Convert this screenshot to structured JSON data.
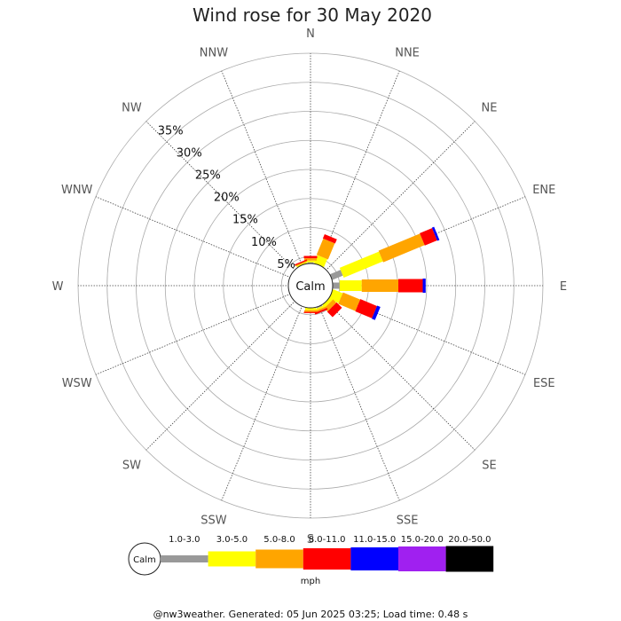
{
  "chart_data": {
    "type": "wind-rose",
    "title": "Wind rose for 30 May 2020",
    "directions": [
      "N",
      "NNE",
      "NE",
      "ENE",
      "E",
      "ESE",
      "SE",
      "SSE",
      "S",
      "SSW",
      "SW",
      "WSW",
      "W",
      "WNW",
      "NW",
      "NNW"
    ],
    "radial_ticks": [
      "5%",
      "10%",
      "15%",
      "20%",
      "25%",
      "30%",
      "35%"
    ],
    "radial_values": [
      5,
      10,
      15,
      20,
      25,
      30,
      35
    ],
    "radial_max": 40,
    "calm_label": "Calm",
    "speed_bins": [
      "1.0-3.0",
      "3.0-5.0",
      "5.0-8.0",
      "8.0-11.0",
      "11.0-15.0",
      "15.0-20.0",
      "20.0-50.0"
    ],
    "bin_colors": [
      "#999999",
      "#ffff00",
      "#ffa500",
      "#ff0000",
      "#0000ff",
      "#a020f0",
      "#000000"
    ],
    "unit": "mph",
    "series": [
      {
        "direction": "NNE",
        "values": [
          0,
          1.5,
          3,
          0.8,
          0,
          0,
          0
        ]
      },
      {
        "direction": "ENE",
        "values": [
          2,
          7.3,
          7.7,
          2.3,
          0.4,
          0,
          0
        ]
      },
      {
        "direction": "E",
        "values": [
          1.2,
          3.8,
          6.3,
          4.2,
          0.5,
          0,
          0
        ]
      },
      {
        "direction": "ESE",
        "values": [
          0,
          1.8,
          3.2,
          3.1,
          0.6,
          0,
          0
        ]
      },
      {
        "direction": "SE",
        "values": [
          0,
          0.6,
          0.8,
          1.3,
          0,
          0,
          0
        ]
      },
      {
        "direction": "SSE",
        "values": [
          0.2,
          0.3,
          0.3,
          0.3,
          0,
          0,
          0
        ]
      },
      {
        "direction": "S",
        "values": [
          0,
          0.4,
          0.3,
          0.2,
          0,
          0,
          0
        ]
      },
      {
        "direction": "N",
        "values": [
          0.2,
          0.3,
          0.4,
          0.4,
          0,
          0,
          0
        ]
      },
      {
        "direction": "NNW",
        "values": [
          0,
          0.2,
          0.2,
          0.2,
          0,
          0,
          0
        ]
      }
    ]
  },
  "footer": "@nw3weather. Generated: 05 Jun 2025 03:25; Load time: 0.48 s"
}
